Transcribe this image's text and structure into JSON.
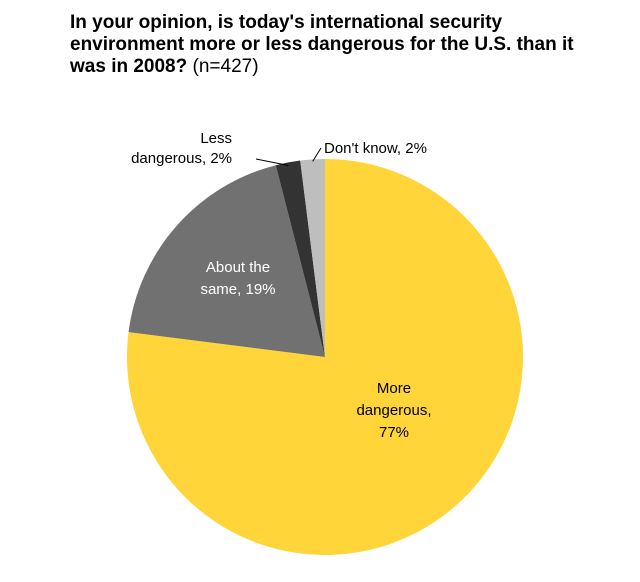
{
  "chart_data": {
    "type": "pie",
    "title": "In your opinion, is today's international security environment more or less dangerous for the U.S. than it was in 2008?",
    "subtitle": "(n=427)",
    "start": "12 o'clock, clockwise",
    "slices": [
      {
        "name": "More dangerous",
        "value": 77,
        "label_lines": [
          "More",
          "dangerous,",
          "77%"
        ],
        "color": "#FFD53A",
        "label_color": "#000000",
        "label_position": "inside"
      },
      {
        "name": "About the same",
        "value": 19,
        "label_lines": [
          "About the",
          "same, 19%"
        ],
        "color": "#717171",
        "label_color": "#ffffff",
        "label_position": "inside"
      },
      {
        "name": "Less dangerous",
        "value": 2,
        "label_lines": [
          "Less",
          "dangerous, 2%"
        ],
        "color": "#333333",
        "label_color": "#000000",
        "label_position": "outside-left"
      },
      {
        "name": "Don't know",
        "value": 2,
        "label_lines": [
          "Don't know, 2%"
        ],
        "color": "#BEBEBE",
        "label_color": "#000000",
        "label_position": "outside-right"
      }
    ]
  }
}
